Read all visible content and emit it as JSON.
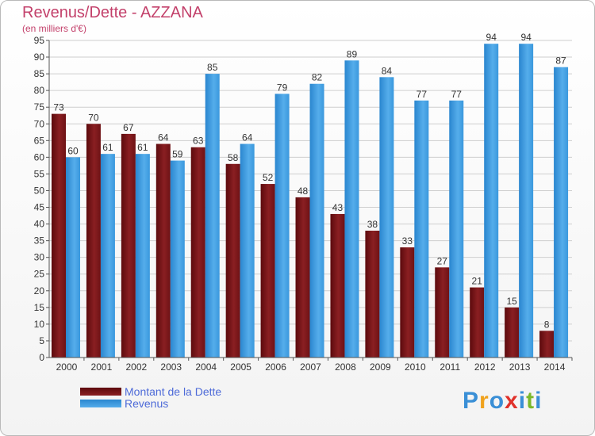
{
  "title": "Revenus/Dette - AZZANA",
  "subtitle": "(en milliers d'€)",
  "chart_data": {
    "type": "bar",
    "categories": [
      "2000",
      "2001",
      "2002",
      "2003",
      "2004",
      "2005",
      "2006",
      "2007",
      "2008",
      "2009",
      "2010",
      "2011",
      "2012",
      "2013",
      "2014"
    ],
    "series": [
      {
        "name": "Montant de la Dette",
        "values": [
          73,
          70,
          67,
          64,
          63,
          58,
          52,
          48,
          43,
          38,
          33,
          27,
          21,
          15,
          8
        ],
        "color": "#7a1418"
      },
      {
        "name": "Revenus",
        "values": [
          60,
          61,
          61,
          59,
          85,
          64,
          79,
          82,
          89,
          84,
          77,
          77,
          94,
          94,
          87
        ],
        "color": "#3d9fe0"
      }
    ],
    "ylim": [
      0,
      95
    ],
    "ytick_step": 5,
    "grid": true,
    "legend_position": "bottom-left"
  },
  "legend": {
    "debt_label": "Montant de la Dette",
    "revenue_label": "Revenus"
  },
  "logo": {
    "letters": [
      "P",
      "r",
      "o",
      "x",
      "i",
      "t",
      "i"
    ],
    "colors": [
      "#3a8fd6",
      "#f0a21c",
      "#3a8fd6",
      "#e0312a",
      "#3a8fd6",
      "#7ab82a",
      "#3a8fd6"
    ]
  }
}
